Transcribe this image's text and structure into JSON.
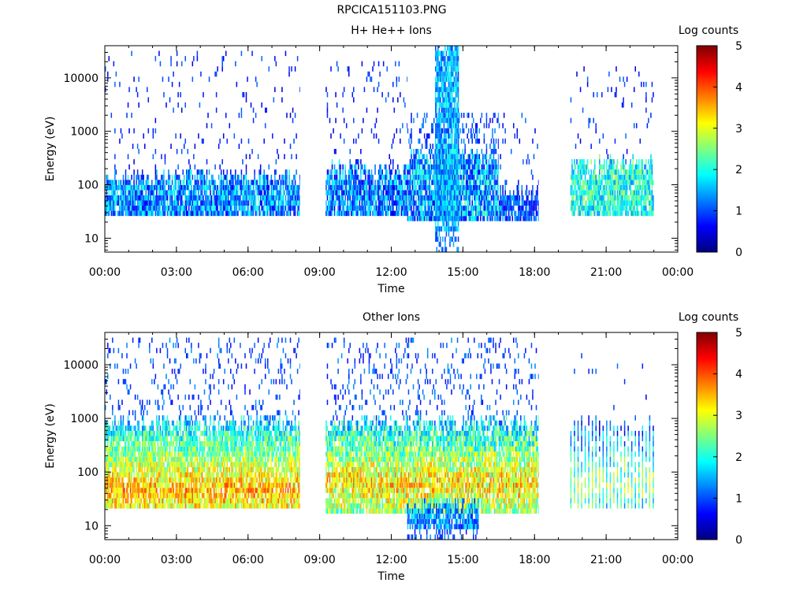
{
  "page": {
    "title": "RPCICA151103.PNG"
  },
  "colors": {
    "background": "#ffffff",
    "axis": "#000000"
  },
  "colormap": [
    "#00007f",
    "#0000ff",
    "#007fff",
    "#00ffff",
    "#7fff7f",
    "#ffff00",
    "#ff7f00",
    "#ff0000",
    "#7f0000"
  ],
  "chart_data": [
    {
      "type": "heatmap",
      "title": "H+ He++ Ions",
      "xlabel": "Time",
      "ylabel": "Energy (eV)",
      "xlim": [
        "00:00",
        "24:00"
      ],
      "xticks": [
        "00:00",
        "03:00",
        "06:00",
        "09:00",
        "12:00",
        "15:00",
        "18:00",
        "21:00",
        "00:00"
      ],
      "yscale": "log",
      "ylim": [
        5.5,
        40000
      ],
      "yticks": [
        10,
        100,
        1000,
        10000
      ],
      "yticklabels": [
        "10",
        "100",
        "1000",
        "10000"
      ],
      "colorbar": {
        "label": "Log counts",
        "range": [
          0,
          5
        ],
        "ticks": [
          "0",
          "1",
          "2",
          "3",
          "4",
          "5"
        ]
      },
      "data_gaps": [
        [
          "08:10",
          "09:15"
        ],
        [
          "18:10",
          "19:30"
        ],
        [
          "23:00",
          "24:00"
        ]
      ],
      "segments": [
        {
          "t": [
            "00:00",
            "08:10"
          ],
          "core_e": [
            25,
            120
          ],
          "core_level": 1.3,
          "core_jitter": 0.8,
          "sparse_e": [
            30,
            35000
          ],
          "sparse_density": 0.05,
          "sparse_level": 0.8
        },
        {
          "t": [
            "09:15",
            "12:40"
          ],
          "core_e": [
            25,
            160
          ],
          "core_level": 1.2,
          "core_jitter": 0.8,
          "sparse_e": [
            30,
            20000
          ],
          "sparse_density": 0.07,
          "sparse_level": 0.8
        },
        {
          "t": [
            "12:40",
            "16:30"
          ],
          "core_e": [
            20,
            300
          ],
          "core_level": 1.4,
          "core_jitter": 0.9,
          "sparse_e": [
            30,
            2000
          ],
          "sparse_density": 0.25,
          "sparse_level": 1.0
        },
        {
          "t": [
            "13:50",
            "14:50"
          ],
          "core_e": [
            12,
            35000
          ],
          "core_level": 1.5,
          "core_jitter": 0.6,
          "sparse_e": [
            6,
            40000
          ],
          "sparse_density": 0.4,
          "sparse_level": 1.2
        },
        {
          "t": [
            "16:30",
            "18:10"
          ],
          "core_e": [
            20,
            60
          ],
          "core_level": 1.0,
          "core_jitter": 0.6,
          "sparse_e": [
            30,
            2000
          ],
          "sparse_density": 0.05,
          "sparse_level": 0.8
        },
        {
          "t": [
            "19:30",
            "23:00"
          ],
          "core_e": [
            25,
            200
          ],
          "core_level": 2.0,
          "core_jitter": 0.7,
          "sparse_e": [
            100,
            15000
          ],
          "sparse_density": 0.04,
          "sparse_level": 0.8
        }
      ]
    },
    {
      "type": "heatmap",
      "title": "Other Ions",
      "xlabel": "Time",
      "ylabel": "Energy (eV)",
      "xlim": [
        "00:00",
        "24:00"
      ],
      "xticks": [
        "00:00",
        "03:00",
        "06:00",
        "09:00",
        "12:00",
        "15:00",
        "18:00",
        "21:00",
        "00:00"
      ],
      "yscale": "log",
      "ylim": [
        5.5,
        40000
      ],
      "yticks": [
        10,
        100,
        1000,
        10000
      ],
      "yticklabels": [
        "10",
        "100",
        "1000",
        "10000"
      ],
      "colorbar": {
        "label": "Log counts",
        "range": [
          0,
          5
        ],
        "ticks": [
          "0",
          "1",
          "2",
          "3",
          "4",
          "5"
        ]
      },
      "data_gaps": [
        [
          "08:10",
          "09:15"
        ],
        [
          "18:10",
          "19:30"
        ],
        [
          "23:00",
          "24:00"
        ]
      ],
      "segments": [
        {
          "t": [
            "00:00",
            "08:10"
          ],
          "core_e": [
            20,
            700
          ],
          "core_level": 3.5,
          "core_jitter": 0.7,
          "peak_e": 45,
          "sparse_e": [
            700,
            30000
          ],
          "sparse_density": 0.12,
          "sparse_level": 1.0
        },
        {
          "t": [
            "09:15",
            "18:10"
          ],
          "core_e": [
            18,
            700
          ],
          "core_level": 3.3,
          "core_jitter": 0.8,
          "peak_e": 60,
          "sparse_e": [
            700,
            30000
          ],
          "sparse_density": 0.12,
          "sparse_level": 1.0
        },
        {
          "t": [
            "12:40",
            "15:40"
          ],
          "core_e": [
            8,
            20
          ],
          "core_level": 1.3,
          "core_jitter": 0.6,
          "sparse_e": [
            6,
            12
          ],
          "sparse_density": 0.3,
          "sparse_level": 1.0
        },
        {
          "t": [
            "19:30",
            "23:00"
          ],
          "core_e": [
            20,
            700
          ],
          "core_level": 2.6,
          "core_jitter": 0.8,
          "peak_e": 60,
          "sparse_e": [
            700,
            15000
          ],
          "sparse_density": 0.05,
          "sparse_level": 0.8,
          "striped": true
        }
      ]
    }
  ]
}
